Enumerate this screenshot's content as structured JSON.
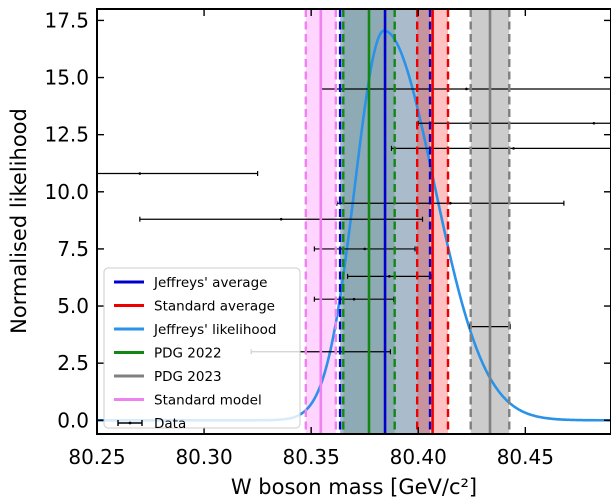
{
  "chart_data": {
    "type": "line",
    "xlabel": "W boson mass [GeV/c²]",
    "ylabel": "Normalised likelihood",
    "xlim": [
      80.25,
      80.49
    ],
    "ylim": [
      -0.6,
      18.0
    ],
    "xticks": [
      80.25,
      80.3,
      80.35,
      80.4,
      80.45
    ],
    "xtick_labels": [
      "80.25",
      "80.30",
      "80.35",
      "80.40",
      "80.45"
    ],
    "yticks": [
      0.0,
      2.5,
      5.0,
      7.5,
      10.0,
      12.5,
      15.0,
      17.5
    ],
    "ytick_labels": [
      "0.0",
      "2.5",
      "5.0",
      "7.5",
      "10.0",
      "12.5",
      "15.0",
      "17.5"
    ],
    "grid": false,
    "legend_position": "lower-left",
    "series": [
      {
        "name": "Jeffreys' average",
        "kind": "vline",
        "center": 80.3845,
        "low": 80.3635,
        "high": 80.4055,
        "color": "#0000cc",
        "fill": "#1f4e79",
        "fill_opacity": 0.38
      },
      {
        "name": "Standard average",
        "kind": "vline",
        "center": 80.4067,
        "low": 80.3995,
        "high": 80.4139,
        "color": "#ee0000",
        "fill": "#ff4444",
        "fill_opacity": 0.33
      },
      {
        "name": "Jeffreys' likelihood",
        "kind": "curve",
        "peak_x": 80.384,
        "peak_y": 17.05,
        "sigma_left": 0.0135,
        "sigma_right": 0.0235,
        "color": "#2a92e8"
      },
      {
        "name": "PDG 2022",
        "kind": "vline",
        "center": 80.377,
        "low": 80.365,
        "high": 80.389,
        "color": "#118811",
        "fill": "#1f6b5a",
        "fill_opacity": 0.2
      },
      {
        "name": "PDG 2023",
        "kind": "vline",
        "center": 80.4335,
        "low": 80.4245,
        "high": 80.4425,
        "color": "#808080",
        "fill": "#999999",
        "fill_opacity": 0.5
      },
      {
        "name": "Standard model",
        "kind": "vline",
        "center": 80.3545,
        "low": 80.3475,
        "high": 80.3615,
        "color": "#ee82ee",
        "fill": "#ffaaff",
        "fill_opacity": 0.5
      },
      {
        "name": "Data",
        "kind": "errorbar",
        "color": "#000000",
        "points": [
          {
            "x": 80.4225,
            "y": 14.5,
            "xerr": 0.068
          },
          {
            "x": 80.482,
            "y": 13.0,
            "xerr": 0.082
          },
          {
            "x": 80.4445,
            "y": 11.9,
            "xerr": 0.057
          },
          {
            "x": 80.27,
            "y": 10.8,
            "xerr": 0.055
          },
          {
            "x": 80.415,
            "y": 9.5,
            "xerr": 0.053
          },
          {
            "x": 80.336,
            "y": 8.8,
            "xerr": 0.066
          },
          {
            "x": 80.375,
            "y": 7.5,
            "xerr": 0.0235
          },
          {
            "x": 80.3865,
            "y": 6.3,
            "xerr": 0.0195
          },
          {
            "x": 80.37,
            "y": 5.3,
            "xerr": 0.0185
          },
          {
            "x": 80.4335,
            "y": 4.1,
            "xerr": 0.0095
          },
          {
            "x": 80.3545,
            "y": 3.0,
            "xerr": 0.0325
          }
        ]
      }
    ]
  }
}
